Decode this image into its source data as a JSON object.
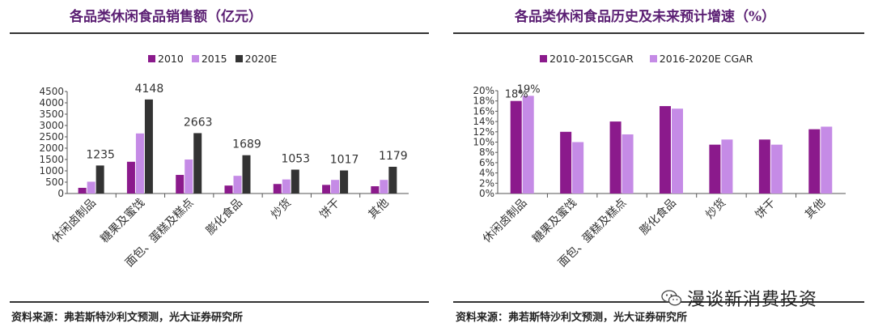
{
  "left": {
    "title": "各品类休闲食品销售额（亿元）",
    "source": "资料来源：弗若斯特沙利文预测，光大证券研究所"
  },
  "right": {
    "title": "各品类休闲食品历史及未来预计增速（%）",
    "source": "资料来源：弗若斯特沙利文预测，光大证券研究所"
  },
  "watermark": {
    "text": "漫谈新消费投资",
    "icon": "wechat-icon"
  },
  "chart_data": [
    {
      "type": "bar",
      "categories": [
        "休闲卤制品",
        "糖果及蜜饯",
        "面包、蛋糕及糕点",
        "膨化食品",
        "炒货",
        "饼干",
        "其他"
      ],
      "series": [
        {
          "name": "2010",
          "color": "#8b1a8c",
          "values": [
            250,
            1400,
            820,
            350,
            420,
            380,
            320
          ]
        },
        {
          "name": "2015",
          "color": "#c58be6",
          "values": [
            520,
            2650,
            1500,
            780,
            620,
            600,
            600
          ]
        },
        {
          "name": "2020E",
          "color": "#333333",
          "values": [
            1235,
            4148,
            2663,
            1689,
            1053,
            1017,
            1179
          ]
        }
      ],
      "data_labels": [
        "1235",
        "4148",
        "2663",
        "1689",
        "1053",
        "1017",
        "1179"
      ],
      "ylim": [
        0,
        4500
      ],
      "yticks": [
        "0",
        "500",
        "1000",
        "1500",
        "2000",
        "2500",
        "3000",
        "3500",
        "4000",
        "4500"
      ],
      "grid": false,
      "legend": "top"
    },
    {
      "type": "bar",
      "categories": [
        "休闲卤制品",
        "糖果及蜜饯",
        "面包、蛋糕及糕点",
        "膨化食品",
        "炒货",
        "饼干",
        "其他"
      ],
      "series": [
        {
          "name": "2010-2015CGAR",
          "color": "#8b1a8c",
          "values": [
            18,
            12,
            14,
            17,
            9.5,
            10.5,
            12.5
          ]
        },
        {
          "name": "2016-2020E CGAR",
          "color": "#c58be6",
          "values": [
            19,
            10,
            11.5,
            16.5,
            10.5,
            9.5,
            13
          ]
        }
      ],
      "data_labels": [
        "18%",
        "19%"
      ],
      "ylim": [
        0,
        20
      ],
      "yticks": [
        "0%",
        "2%",
        "4%",
        "6%",
        "8%",
        "10%",
        "12%",
        "14%",
        "16%",
        "18%",
        "20%"
      ],
      "grid": false,
      "legend": "top"
    }
  ]
}
